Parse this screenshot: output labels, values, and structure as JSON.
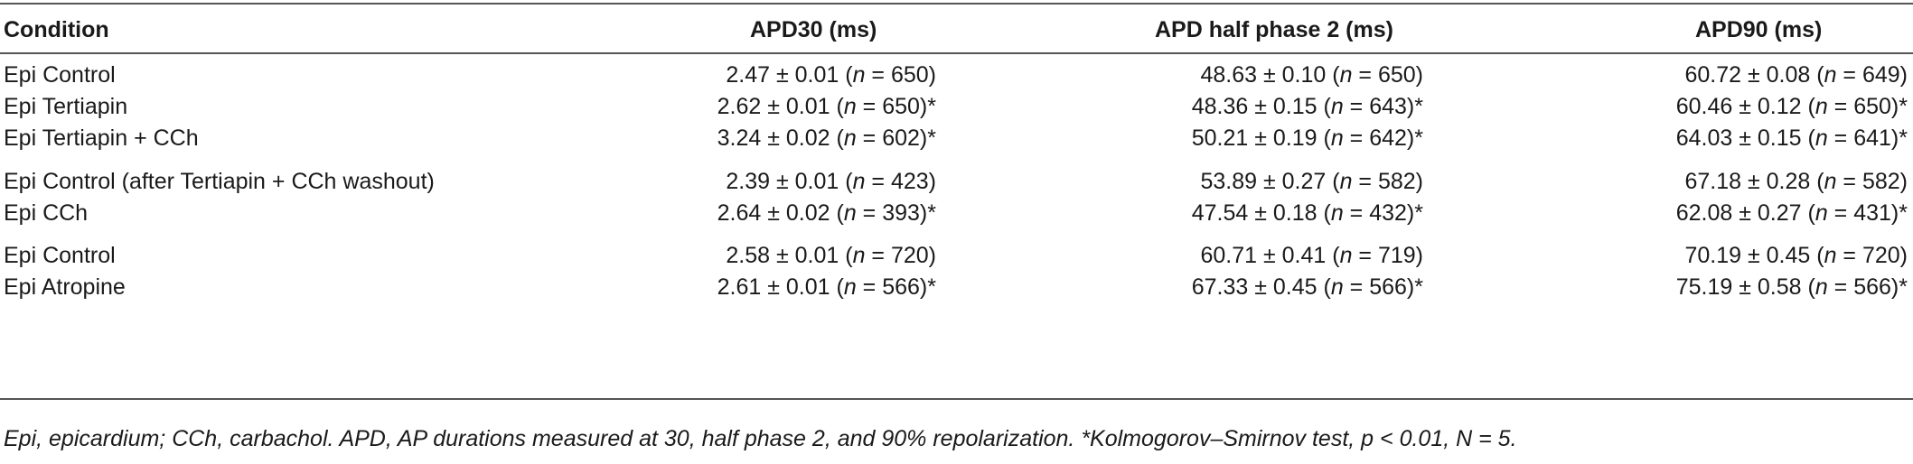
{
  "table": {
    "headers": [
      "Condition",
      "APD30 (ms)",
      "APD half phase 2 (ms)",
      "APD90 (ms)"
    ],
    "rows": [
      {
        "condition": "Epi Control",
        "apd30": {
          "v": "2.47 ± 0.01 (",
          "n": "n",
          "rest": " = 650)"
        },
        "apdhalf": {
          "v": "48.63 ± 0.10 (",
          "n": "n",
          "rest": " = 650)"
        },
        "apd90": {
          "v": "60.72 ± 0.08 (",
          "n": "n",
          "rest": " = 649)"
        }
      },
      {
        "condition": "Epi Tertiapin",
        "apd30": {
          "v": "2.62 ± 0.01 (",
          "n": "n",
          "rest": " = 650)*"
        },
        "apdhalf": {
          "v": "48.36 ± 0.15 (",
          "n": "n",
          "rest": " = 643)*"
        },
        "apd90": {
          "v": "60.46 ± 0.12 (",
          "n": "n",
          "rest": " = 650)*"
        }
      },
      {
        "condition": "Epi Tertiapin + CCh",
        "apd30": {
          "v": "3.24 ± 0.02 (",
          "n": "n",
          "rest": " = 602)*"
        },
        "apdhalf": {
          "v": "50.21 ± 0.19 (",
          "n": "n",
          "rest": " = 642)*"
        },
        "apd90": {
          "v": "64.03 ± 0.15 (",
          "n": "n",
          "rest": " = 641)*"
        }
      },
      {
        "condition": "Epi Control (after Tertiapin + CCh washout)",
        "apd30": {
          "v": "2.39 ± 0.01 (",
          "n": "n",
          "rest": " = 423)"
        },
        "apdhalf": {
          "v": "53.89 ± 0.27 (",
          "n": "n",
          "rest": " = 582)"
        },
        "apd90": {
          "v": "67.18 ± 0.28 (",
          "n": "n",
          "rest": " = 582)"
        }
      },
      {
        "condition": "Epi CCh",
        "apd30": {
          "v": "2.64 ± 0.02 (",
          "n": "n",
          "rest": " = 393)*"
        },
        "apdhalf": {
          "v": "47.54 ± 0.18 (",
          "n": "n",
          "rest": " = 432)*"
        },
        "apd90": {
          "v": "62.08 ± 0.27 (",
          "n": "n",
          "rest": " = 431)*"
        }
      },
      {
        "condition": "Epi Control",
        "apd30": {
          "v": "2.58 ± 0.01 (",
          "n": "n",
          "rest": " = 720)"
        },
        "apdhalf": {
          "v": "60.71 ± 0.41 (",
          "n": "n",
          "rest": " = 719)"
        },
        "apd90": {
          "v": "70.19 ± 0.45 (",
          "n": "n",
          "rest": " = 720)"
        }
      },
      {
        "condition": "Epi Atropine",
        "apd30": {
          "v": "2.61 ± 0.01 (",
          "n": "n",
          "rest": " = 566)*"
        },
        "apdhalf": {
          "v": "67.33 ± 0.45 (",
          "n": "n",
          "rest": " = 566)*"
        },
        "apd90": {
          "v": "75.19 ± 0.58 (",
          "n": "n",
          "rest": " = 566)*"
        }
      }
    ],
    "footnote": "Epi, epicardium; CCh, carbachol. APD, AP durations measured at 30, half phase 2, and 90% repolarization. *Kolmogorov–Smirnov test, p < 0.01, N = 5."
  }
}
